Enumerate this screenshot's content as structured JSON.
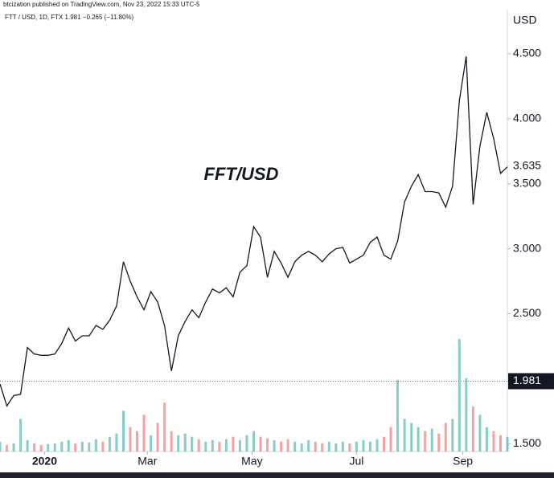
{
  "chart_data": {
    "type": "line",
    "header": "btcization published on TradingView.com, Nov 23, 2022 15:33 UTC-5",
    "legend": "FTT / USD, 1D, FTX  1.981  −0.265 (−11.80%)",
    "annotation": "FFT/USD",
    "y_unit": "USD",
    "color": "#131722",
    "volume_up_color": "#26a69a",
    "volume_down_color": "#ef5350",
    "xlim": [
      -26,
      270
    ],
    "xticks": [
      {
        "value": 0,
        "label": "2020"
      },
      {
        "value": 60,
        "label": "Mar"
      },
      {
        "value": 121,
        "label": "May"
      },
      {
        "value": 182,
        "label": "Jul"
      },
      {
        "value": 244,
        "label": "Sep"
      }
    ],
    "ylim": [
      1.44,
      4.84
    ],
    "yticks": [
      {
        "value": 1.5,
        "label": "1.500"
      },
      {
        "value": 2.5,
        "label": "2.500"
      },
      {
        "value": 3,
        "label": "3.000"
      },
      {
        "value": 3.5,
        "label": "3.500"
      },
      {
        "value": 4,
        "label": "4.000"
      },
      {
        "value": 4.5,
        "label": "4.500"
      }
    ],
    "price_labels": [
      {
        "value": 3.635,
        "label": "3.635"
      },
      {
        "value": 1.981,
        "label": "1.981"
      }
    ],
    "x": [
      -26,
      -22,
      -18,
      -14,
      -10,
      -6,
      -2,
      2,
      6,
      10,
      14,
      18,
      22,
      26,
      30,
      34,
      38,
      42,
      46,
      50,
      54,
      58,
      62,
      66,
      70,
      74,
      78,
      82,
      86,
      90,
      94,
      98,
      102,
      106,
      110,
      114,
      118,
      122,
      126,
      130,
      134,
      138,
      142,
      146,
      150,
      154,
      158,
      162,
      166,
      170,
      174,
      178,
      182,
      186,
      190,
      194,
      198,
      202,
      206,
      210,
      214,
      218,
      222,
      226,
      230,
      234,
      238,
      242,
      246,
      250,
      254,
      258,
      262,
      266,
      270
    ],
    "values": [
      1.96,
      1.79,
      1.87,
      1.88,
      2.24,
      2.19,
      2.18,
      2.18,
      2.19,
      2.27,
      2.39,
      2.29,
      2.33,
      2.33,
      2.41,
      2.38,
      2.45,
      2.56,
      2.9,
      2.75,
      2.63,
      2.53,
      2.67,
      2.59,
      2.41,
      2.06,
      2.33,
      2.44,
      2.53,
      2.47,
      2.59,
      2.69,
      2.66,
      2.7,
      2.63,
      2.82,
      2.87,
      3.17,
      3.09,
      2.78,
      2.98,
      2.89,
      2.78,
      2.9,
      2.95,
      2.98,
      2.95,
      2.9,
      2.96,
      3,
      3.01,
      2.89,
      2.92,
      2.95,
      3.05,
      3.09,
      2.95,
      2.92,
      3.06,
      3.36,
      3.48,
      3.57,
      3.44,
      3.44,
      3.43,
      3.32,
      3.48,
      4.14,
      4.48,
      3.34,
      3.79,
      4.05,
      3.85,
      3.58,
      3.63
    ],
    "volume": [
      12,
      8,
      10,
      40,
      14,
      10,
      8,
      9,
      10,
      12,
      14,
      10,
      12,
      11,
      15,
      12,
      18,
      22,
      50,
      30,
      25,
      45,
      20,
      35,
      60,
      25,
      20,
      22,
      18,
      15,
      12,
      14,
      12,
      15,
      18,
      14,
      20,
      25,
      18,
      16,
      14,
      12,
      15,
      12,
      10,
      14,
      12,
      10,
      12,
      10,
      12,
      10,
      12,
      14,
      12,
      15,
      18,
      30,
      88,
      40,
      35,
      30,
      25,
      28,
      22,
      35,
      40,
      138,
      90,
      55,
      45,
      30,
      25,
      20,
      18
    ]
  }
}
